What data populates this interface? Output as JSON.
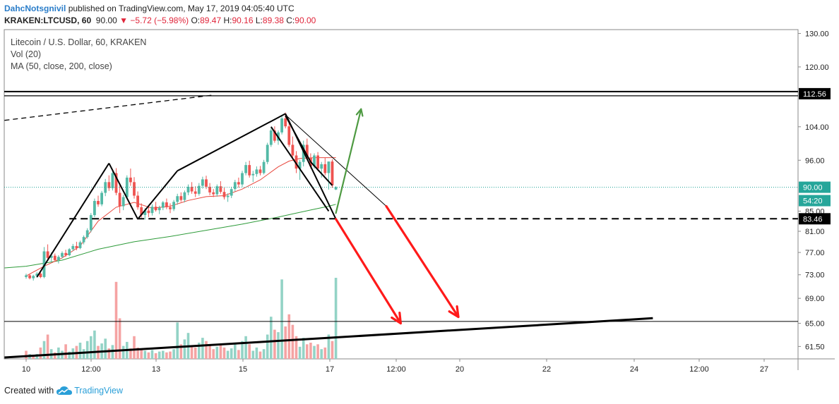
{
  "header": {
    "author": "DahcNotsgnivil",
    "published": " published on TradingView.com, May 17, 2019 04:05:40 UTC",
    "symbol": "KRAKEN:LTCUSD, 60",
    "last": "90.00",
    "change": "▼ −5.72 (−5.98%)",
    "o_label": "O:",
    "o_value": "89.47",
    "h_label": "H:",
    "h_value": "90.16",
    "l_label": "L:",
    "l_value": "89.38",
    "c_label": "C:",
    "c_value": "90.00"
  },
  "legend": {
    "title": "Litecoin / U.S. Dollar, 60, KRAKEN",
    "vol": "Vol (20)",
    "ma": "MA (50, close, 200, close)"
  },
  "footer": {
    "created_with": "Created with",
    "brand": "TradingView"
  },
  "colors": {
    "up": "#53b9a6",
    "down": "#ef5350",
    "vol_up": "#93d3c6",
    "vol_down": "#f5a3a3",
    "ma_fast": "#e8463c",
    "ma_slow": "#2e9b3a",
    "price_line": "#26a69a",
    "arrow_red": "#ff1a1a",
    "arrow_green": "#4e9a42"
  },
  "chart_data": {
    "type": "candlestick",
    "yscale": "log",
    "ylim": [
      59.7,
      131.2
    ],
    "y_ticks": [
      "130.00",
      "120.00",
      "104.00",
      "96.00",
      "85.00",
      "81.00",
      "77.00",
      "73.00",
      "69.00",
      "65.00",
      "61.50"
    ],
    "x_ticks": [
      "10",
      "12:00",
      "13",
      "15",
      "17",
      "12:00",
      "20",
      "22",
      "24",
      "12:00",
      "27"
    ],
    "price_labels": {
      "resistance": "112.56",
      "last": "90.00",
      "countdown": "54:20",
      "support": "83.46"
    },
    "key_levels": {
      "resistance": 112.56,
      "support": 83.46,
      "lower": 65.3
    },
    "candles": [
      [
        72.6,
        73.2,
        72.3,
        72.9
      ],
      [
        72.9,
        73.1,
        72.2,
        72.4
      ],
      [
        72.4,
        73.0,
        72.0,
        72.8
      ],
      [
        72.8,
        73.5,
        72.5,
        73.2
      ],
      [
        73.2,
        73.4,
        72.4,
        72.6
      ],
      [
        72.6,
        78.0,
        72.4,
        77.2
      ],
      [
        77.2,
        78.5,
        75.8,
        76.0
      ],
      [
        76.0,
        77.0,
        75.2,
        76.4
      ],
      [
        76.4,
        76.8,
        75.3,
        75.6
      ],
      [
        75.6,
        76.5,
        75.0,
        76.2
      ],
      [
        76.2,
        77.2,
        75.9,
        76.9
      ],
      [
        76.9,
        77.5,
        76.2,
        76.5
      ],
      [
        76.5,
        77.8,
        76.3,
        77.6
      ],
      [
        77.6,
        78.6,
        77.3,
        78.2
      ],
      [
        78.2,
        79.0,
        77.4,
        77.8
      ],
      [
        77.8,
        79.2,
        77.6,
        78.9
      ],
      [
        78.9,
        80.2,
        78.5,
        79.9
      ],
      [
        79.9,
        81.6,
        79.6,
        81.2
      ],
      [
        81.2,
        84.6,
        80.8,
        84.2
      ],
      [
        84.2,
        87.6,
        83.8,
        87.1
      ],
      [
        87.1,
        88.2,
        85.9,
        86.4
      ],
      [
        86.4,
        89.2,
        86.0,
        88.8
      ],
      [
        88.8,
        91.8,
        88.1,
        91.1
      ],
      [
        91.1,
        92.6,
        89.2,
        89.8
      ],
      [
        89.8,
        93.8,
        89.3,
        93.1
      ],
      [
        93.1,
        94.2,
        88.3,
        88.8
      ],
      [
        88.8,
        90.5,
        84.6,
        86.0
      ],
      [
        86.0,
        88.4,
        85.2,
        87.9
      ],
      [
        87.9,
        92.6,
        87.5,
        92.1
      ],
      [
        92.1,
        94.1,
        90.3,
        91.1
      ],
      [
        91.1,
        92.2,
        87.6,
        88.2
      ],
      [
        88.2,
        89.1,
        85.3,
        85.8
      ],
      [
        85.8,
        86.6,
        83.7,
        84.2
      ],
      [
        84.2,
        85.6,
        83.3,
        85.1
      ],
      [
        85.1,
        86.2,
        83.8,
        84.6
      ],
      [
        84.6,
        86.4,
        84.1,
        85.9
      ],
      [
        85.9,
        86.9,
        84.9,
        85.2
      ],
      [
        85.2,
        86.1,
        84.4,
        85.7
      ],
      [
        85.7,
        87.1,
        85.2,
        86.8
      ],
      [
        86.8,
        87.6,
        85.4,
        85.8
      ],
      [
        85.8,
        86.6,
        84.6,
        85.4
      ],
      [
        85.4,
        87.3,
        85.0,
        86.9
      ],
      [
        86.9,
        88.6,
        86.3,
        88.1
      ],
      [
        88.1,
        88.9,
        86.9,
        87.3
      ],
      [
        87.3,
        89.3,
        86.8,
        88.9
      ],
      [
        88.9,
        90.6,
        88.3,
        90.1
      ],
      [
        90.1,
        91.1,
        88.6,
        89.1
      ],
      [
        89.1,
        90.2,
        87.9,
        88.6
      ],
      [
        88.6,
        90.9,
        88.2,
        90.3
      ],
      [
        90.3,
        92.3,
        89.7,
        91.7
      ],
      [
        91.7,
        92.5,
        89.6,
        90.1
      ],
      [
        90.1,
        90.9,
        88.3,
        88.9
      ],
      [
        88.9,
        89.6,
        87.9,
        88.5
      ],
      [
        88.5,
        90.6,
        88.0,
        90.2
      ],
      [
        90.2,
        91.3,
        88.6,
        89.0
      ],
      [
        89.0,
        89.9,
        87.4,
        87.9
      ],
      [
        87.9,
        88.7,
        86.9,
        88.2
      ],
      [
        88.2,
        90.1,
        87.7,
        89.6
      ],
      [
        89.6,
        91.6,
        89.1,
        91.1
      ],
      [
        91.1,
        92.1,
        89.9,
        90.6
      ],
      [
        90.6,
        93.6,
        90.1,
        93.1
      ],
      [
        93.1,
        95.6,
        92.6,
        94.9
      ],
      [
        94.9,
        95.9,
        92.1,
        92.6
      ],
      [
        92.6,
        93.6,
        91.1,
        92.9
      ],
      [
        92.9,
        94.6,
        92.3,
        93.9
      ],
      [
        93.9,
        94.7,
        92.6,
        93.1
      ],
      [
        93.1,
        96.1,
        92.8,
        95.6
      ],
      [
        95.6,
        100.1,
        95.1,
        99.6
      ],
      [
        99.6,
        103.6,
        99.1,
        103.1
      ],
      [
        103.1,
        104.1,
        100.1,
        100.6
      ],
      [
        100.6,
        103.1,
        99.6,
        102.6
      ],
      [
        102.6,
        106.6,
        102.1,
        106.1
      ],
      [
        106.1,
        107.6,
        103.6,
        104.1
      ],
      [
        104.1,
        105.1,
        99.1,
        99.6
      ],
      [
        99.6,
        101.6,
        96.6,
        97.1
      ],
      [
        97.1,
        98.1,
        93.1,
        94.1
      ],
      [
        94.1,
        96.1,
        91.6,
        95.6
      ],
      [
        95.6,
        100.6,
        94.6,
        99.6
      ],
      [
        99.6,
        101.1,
        96.1,
        96.6
      ],
      [
        96.6,
        97.6,
        94.1,
        94.6
      ],
      [
        94.6,
        97.6,
        94.1,
        97.1
      ],
      [
        97.1,
        97.9,
        93.6,
        94.1
      ],
      [
        94.1,
        95.6,
        92.1,
        95.1
      ],
      [
        95.1,
        96.6,
        92.6,
        93.1
      ],
      [
        93.1,
        95.7,
        89.5,
        95.7
      ],
      [
        95.7,
        96.2,
        89.9,
        90.4
      ],
      [
        89.5,
        90.2,
        89.4,
        90.0
      ]
    ],
    "volume": [
      {
        "v": 0.1,
        "up": false
      },
      {
        "v": 0.06,
        "up": true
      },
      {
        "v": 0.05,
        "up": false
      },
      {
        "v": 0.06,
        "up": true
      },
      {
        "v": 0.14,
        "up": false
      },
      {
        "v": 0.22,
        "up": true
      },
      {
        "v": 0.3,
        "up": false
      },
      {
        "v": 0.12,
        "up": true
      },
      {
        "v": 0.08,
        "up": false
      },
      {
        "v": 0.14,
        "up": true
      },
      {
        "v": 0.1,
        "up": true
      },
      {
        "v": 0.18,
        "up": false
      },
      {
        "v": 0.09,
        "up": true
      },
      {
        "v": 0.13,
        "up": true
      },
      {
        "v": 0.16,
        "up": false
      },
      {
        "v": 0.2,
        "up": true
      },
      {
        "v": 0.12,
        "up": true
      },
      {
        "v": 0.22,
        "up": true
      },
      {
        "v": 0.28,
        "up": true
      },
      {
        "v": 0.35,
        "up": true
      },
      {
        "v": 0.16,
        "up": false
      },
      {
        "v": 0.19,
        "up": true
      },
      {
        "v": 0.25,
        "up": true
      },
      {
        "v": 0.13,
        "up": false
      },
      {
        "v": 0.17,
        "up": true
      },
      {
        "v": 0.95,
        "up": false
      },
      {
        "v": 0.5,
        "up": false
      },
      {
        "v": 0.16,
        "up": true
      },
      {
        "v": 0.21,
        "up": true
      },
      {
        "v": 0.13,
        "up": false
      },
      {
        "v": 0.28,
        "up": false
      },
      {
        "v": 0.14,
        "up": false
      },
      {
        "v": 0.12,
        "up": false
      },
      {
        "v": 0.1,
        "up": true
      },
      {
        "v": 0.08,
        "up": false
      },
      {
        "v": 0.11,
        "up": true
      },
      {
        "v": 0.07,
        "up": false
      },
      {
        "v": 0.09,
        "up": true
      },
      {
        "v": 0.1,
        "up": true
      },
      {
        "v": 0.08,
        "up": false
      },
      {
        "v": 0.09,
        "up": false
      },
      {
        "v": 0.12,
        "up": true
      },
      {
        "v": 0.45,
        "up": true
      },
      {
        "v": 0.18,
        "up": false
      },
      {
        "v": 0.24,
        "up": true
      },
      {
        "v": 0.32,
        "up": true
      },
      {
        "v": 0.16,
        "up": false
      },
      {
        "v": 0.14,
        "up": false
      },
      {
        "v": 0.2,
        "up": true
      },
      {
        "v": 0.26,
        "up": true
      },
      {
        "v": 0.22,
        "up": false
      },
      {
        "v": 0.18,
        "up": false
      },
      {
        "v": 0.12,
        "up": false
      },
      {
        "v": 0.15,
        "up": true
      },
      {
        "v": 0.17,
        "up": false
      },
      {
        "v": 0.14,
        "up": false
      },
      {
        "v": 0.1,
        "up": true
      },
      {
        "v": 0.13,
        "up": true
      },
      {
        "v": 0.19,
        "up": true
      },
      {
        "v": 0.11,
        "up": false
      },
      {
        "v": 0.22,
        "up": true
      },
      {
        "v": 0.28,
        "up": true
      },
      {
        "v": 0.18,
        "up": false
      },
      {
        "v": 0.1,
        "up": true
      },
      {
        "v": 0.14,
        "up": true
      },
      {
        "v": 0.09,
        "up": false
      },
      {
        "v": 0.12,
        "up": true
      },
      {
        "v": 0.3,
        "up": true
      },
      {
        "v": 0.52,
        "up": true
      },
      {
        "v": 0.36,
        "up": false
      },
      {
        "v": 0.33,
        "up": true
      },
      {
        "v": 0.98,
        "up": true
      },
      {
        "v": 0.4,
        "up": false
      },
      {
        "v": 0.55,
        "up": false
      },
      {
        "v": 0.42,
        "up": false
      },
      {
        "v": 0.28,
        "up": false
      },
      {
        "v": 0.15,
        "up": true
      },
      {
        "v": 0.26,
        "up": true
      },
      {
        "v": 0.18,
        "up": false
      },
      {
        "v": 0.2,
        "up": false
      },
      {
        "v": 0.16,
        "up": true
      },
      {
        "v": 0.18,
        "up": false
      },
      {
        "v": 0.12,
        "up": true
      },
      {
        "v": 0.14,
        "up": false
      },
      {
        "v": 0.3,
        "up": true
      },
      {
        "v": 0.22,
        "up": false
      },
      {
        "v": 1.0,
        "up": true
      }
    ],
    "ma_fast": [
      [
        0,
        72.8
      ],
      [
        5,
        74.5
      ],
      [
        10,
        76.0
      ],
      [
        15,
        78.2
      ],
      [
        20,
        83.0
      ],
      [
        25,
        85.8
      ],
      [
        30,
        86.8
      ],
      [
        35,
        85.6
      ],
      [
        40,
        86.0
      ],
      [
        45,
        87.2
      ],
      [
        50,
        88.0
      ],
      [
        55,
        88.2
      ],
      [
        60,
        89.6
      ],
      [
        65,
        91.6
      ],
      [
        70,
        94.5
      ],
      [
        73,
        95.8
      ],
      [
        76,
        96.4
      ],
      [
        80,
        96.6
      ],
      [
        86,
        96.6
      ]
    ],
    "ma_slow": [
      [
        -6,
        74.2
      ],
      [
        0,
        74.5
      ],
      [
        10,
        75.6
      ],
      [
        20,
        77.6
      ],
      [
        30,
        79.0
      ],
      [
        40,
        80.0
      ],
      [
        50,
        81.2
      ],
      [
        60,
        82.4
      ],
      [
        70,
        83.8
      ],
      [
        75,
        84.6
      ],
      [
        80,
        85.4
      ],
      [
        84,
        86.0
      ],
      [
        86,
        86.4
      ]
    ],
    "pattern_lines": [
      [
        [
          3,
          72.6
        ],
        [
          23,
          95.3
        ]
      ],
      [
        [
          23,
          95.3
        ],
        [
          31,
          83.4
        ]
      ],
      [
        [
          31,
          83.4
        ],
        [
          42,
          93.6
        ]
      ],
      [
        [
          42,
          93.6
        ],
        [
          72,
          107.3
        ]
      ],
      [
        [
          72,
          107.3
        ],
        [
          86,
          83.4
        ]
      ],
      [
        [
          72,
          106.8
        ],
        [
          79,
          95.6
        ]
      ],
      [
        [
          79,
          95.6
        ],
        [
          85,
          90.4
        ]
      ],
      [
        [
          68,
          104.0
        ],
        [
          84,
          85.0
        ]
      ]
    ],
    "channel_line": [
      [
        72,
        107.0
      ],
      [
        100,
        86.0
      ]
    ],
    "dashed_trend": [
      [
        -6,
        105.6
      ],
      [
        52,
        112.2
      ]
    ],
    "lower_trend": [
      [
        -6,
        59.9
      ],
      [
        174,
        65.8
      ]
    ],
    "arrows": [
      {
        "color": "red",
        "from": [
          86,
          83.4
        ],
        "to": [
          104,
          65.0
        ]
      },
      {
        "color": "red",
        "from": [
          100,
          86.0
        ],
        "to": [
          120,
          66.0
        ]
      },
      {
        "color": "green",
        "from": [
          86,
          84.6
        ],
        "to": [
          93,
          108.5
        ]
      }
    ]
  }
}
